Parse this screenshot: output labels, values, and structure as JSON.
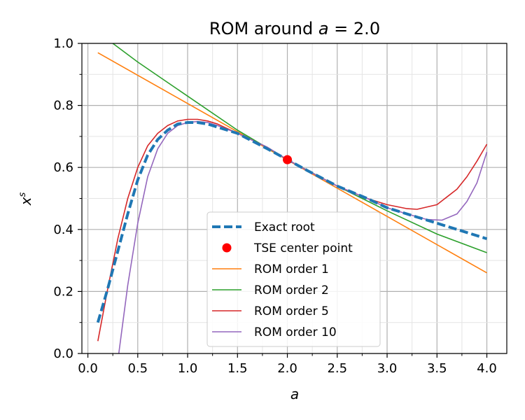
{
  "chart_data": {
    "type": "line",
    "title_prefix": "ROM around ",
    "title_var": "a",
    "title_suffix": " = 2.0",
    "xlabel": "a",
    "ylabel_base": "x",
    "ylabel_sup": "s",
    "xlim": [
      -0.06,
      4.2
    ],
    "ylim": [
      0.0,
      1.0
    ],
    "xticks": [
      0.0,
      0.5,
      1.0,
      1.5,
      2.0,
      2.5,
      3.0,
      3.5,
      4.0
    ],
    "xtick_labels": [
      "0.0",
      "0.5",
      "1.0",
      "1.5",
      "2.0",
      "2.5",
      "3.0",
      "3.5",
      "4.0"
    ],
    "yticks": [
      0.0,
      0.2,
      0.4,
      0.6,
      0.8,
      1.0
    ],
    "ytick_labels": [
      "0.0",
      "0.2",
      "0.4",
      "0.6",
      "0.8",
      "1.0"
    ],
    "grid": true,
    "legend_position": "lower-center",
    "series": [
      {
        "name": "Exact root",
        "color": "#1f77b4",
        "style": "dashed",
        "x": [
          0.1,
          0.2,
          0.3,
          0.4,
          0.5,
          0.6,
          0.7,
          0.8,
          0.9,
          1.0,
          1.1,
          1.2,
          1.3,
          1.5,
          1.8,
          2.0,
          2.2,
          2.5,
          2.8,
          3.0,
          3.3,
          3.5,
          3.8,
          4.0
        ],
        "y": [
          0.1,
          0.21,
          0.33,
          0.45,
          0.56,
          0.64,
          0.69,
          0.72,
          0.74,
          0.745,
          0.745,
          0.74,
          0.73,
          0.71,
          0.66,
          0.625,
          0.59,
          0.54,
          0.5,
          0.47,
          0.44,
          0.42,
          0.39,
          0.37
        ]
      },
      {
        "name": "ROM order 1",
        "color": "#ff7f0e",
        "style": "solid",
        "x": [
          0.1,
          4.0
        ],
        "y": [
          0.97,
          0.26
        ]
      },
      {
        "name": "ROM order 2",
        "color": "#2ca02c",
        "style": "solid",
        "x": [
          0.25,
          0.5,
          1.0,
          1.5,
          2.0,
          2.5,
          3.0,
          3.5,
          4.0
        ],
        "y": [
          1.0,
          0.94,
          0.83,
          0.72,
          0.625,
          0.54,
          0.46,
          0.385,
          0.325
        ]
      },
      {
        "name": "ROM order 5",
        "color": "#d62728",
        "style": "solid",
        "x": [
          0.1,
          0.2,
          0.3,
          0.4,
          0.5,
          0.6,
          0.7,
          0.8,
          0.9,
          1.0,
          1.1,
          1.2,
          1.3,
          1.5,
          1.8,
          2.0,
          2.2,
          2.5,
          2.8,
          3.0,
          3.2,
          3.3,
          3.5,
          3.7,
          3.8,
          3.9,
          4.0
        ],
        "y": [
          0.04,
          0.21,
          0.37,
          0.5,
          0.6,
          0.67,
          0.71,
          0.735,
          0.75,
          0.755,
          0.755,
          0.75,
          0.74,
          0.71,
          0.665,
          0.625,
          0.59,
          0.54,
          0.5,
          0.48,
          0.467,
          0.465,
          0.48,
          0.53,
          0.57,
          0.62,
          0.675
        ]
      },
      {
        "name": "ROM order 10",
        "color": "#9467bd",
        "style": "solid",
        "x": [
          0.31,
          0.4,
          0.5,
          0.6,
          0.7,
          0.8,
          0.9,
          1.0,
          1.1,
          1.2,
          1.3,
          1.5,
          1.8,
          2.0,
          2.2,
          2.5,
          2.8,
          3.0,
          3.2,
          3.4,
          3.55,
          3.7,
          3.8,
          3.9,
          4.0
        ],
        "y": [
          0.0,
          0.22,
          0.42,
          0.57,
          0.66,
          0.71,
          0.735,
          0.745,
          0.748,
          0.745,
          0.735,
          0.71,
          0.665,
          0.625,
          0.59,
          0.54,
          0.5,
          0.47,
          0.45,
          0.432,
          0.43,
          0.45,
          0.49,
          0.55,
          0.65
        ]
      }
    ],
    "points": [
      {
        "name": "TSE center point",
        "color": "#ff0000",
        "x": 2.0,
        "y": 0.625
      }
    ]
  }
}
